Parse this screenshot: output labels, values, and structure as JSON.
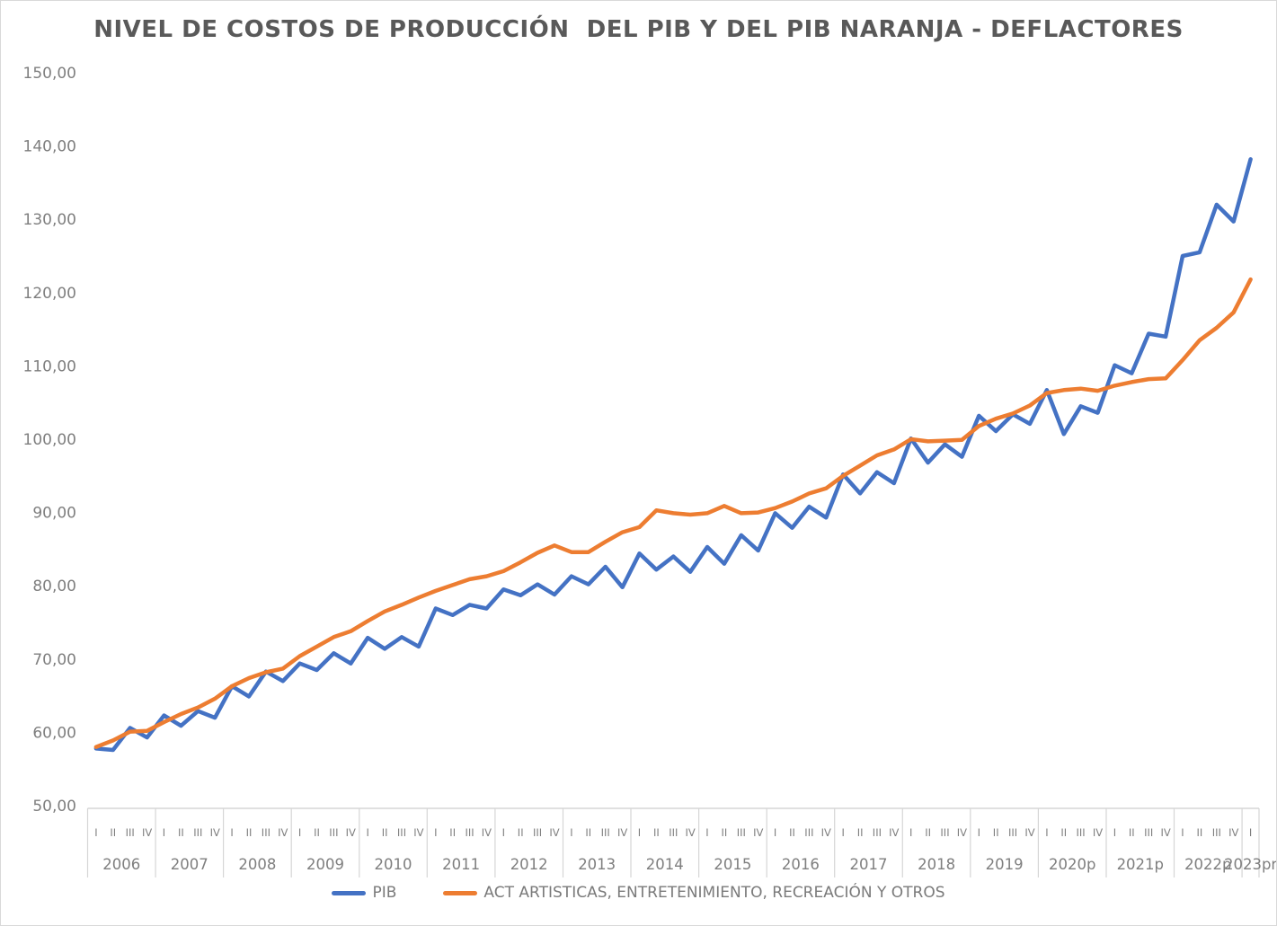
{
  "chart_data": {
    "type": "line",
    "title": "NIVEL DE COSTOS DE PRODUCCIÓN  DEL PIB Y DEL PIB NARANJA - DEFLACTORES",
    "legend_position": "bottom",
    "grid": false,
    "y_axis": {
      "min": 50,
      "max": 150,
      "step": 10,
      "tick_labels": [
        "150,00",
        "140,00",
        "130,00",
        "120,00",
        "110,00",
        "100,00",
        "90,00",
        "80,00",
        "70,00",
        "60,00",
        "50,00"
      ]
    },
    "x_axis": {
      "years": [
        {
          "label": "2006",
          "quarters": [
            "I",
            "II",
            "III",
            "IV"
          ]
        },
        {
          "label": "2007",
          "quarters": [
            "I",
            "II",
            "III",
            "IV"
          ]
        },
        {
          "label": "2008",
          "quarters": [
            "I",
            "II",
            "III",
            "IV"
          ]
        },
        {
          "label": "2009",
          "quarters": [
            "I",
            "II",
            "III",
            "IV"
          ]
        },
        {
          "label": "2010",
          "quarters": [
            "I",
            "II",
            "III",
            "IV"
          ]
        },
        {
          "label": "2011",
          "quarters": [
            "I",
            "II",
            "III",
            "IV"
          ]
        },
        {
          "label": "2012",
          "quarters": [
            "I",
            "II",
            "III",
            "IV"
          ]
        },
        {
          "label": "2013",
          "quarters": [
            "I",
            "II",
            "III",
            "IV"
          ]
        },
        {
          "label": "2014",
          "quarters": [
            "I",
            "II",
            "III",
            "IV"
          ]
        },
        {
          "label": "2015",
          "quarters": [
            "I",
            "II",
            "III",
            "IV"
          ]
        },
        {
          "label": "2016",
          "quarters": [
            "I",
            "II",
            "III",
            "IV"
          ]
        },
        {
          "label": "2017",
          "quarters": [
            "I",
            "II",
            "III",
            "IV"
          ]
        },
        {
          "label": "2018",
          "quarters": [
            "I",
            "II",
            "III",
            "IV"
          ]
        },
        {
          "label": "2019",
          "quarters": [
            "I",
            "II",
            "III",
            "IV"
          ]
        },
        {
          "label": "2020p",
          "quarters": [
            "I",
            "II",
            "III",
            "IV"
          ]
        },
        {
          "label": "2021p",
          "quarters": [
            "I",
            "II",
            "III",
            "IV"
          ]
        },
        {
          "label": "2022p",
          "quarters": [
            "I",
            "II",
            "III",
            "IV"
          ]
        },
        {
          "label": "2023pr",
          "quarters": [
            "I"
          ]
        }
      ]
    },
    "series": [
      {
        "name": "PIB",
        "color": "#4472C4",
        "values": [
          57.8,
          57.6,
          60.6,
          59.3,
          62.3,
          60.9,
          62.9,
          62.0,
          66.3,
          64.9,
          68.3,
          67.0,
          69.4,
          68.5,
          70.8,
          69.4,
          72.9,
          71.4,
          73.0,
          71.7,
          76.9,
          76.0,
          77.4,
          76.9,
          79.5,
          78.7,
          80.2,
          78.8,
          81.3,
          80.2,
          82.6,
          79.8,
          84.4,
          82.2,
          84.0,
          81.9,
          85.3,
          83.0,
          86.9,
          84.8,
          89.9,
          87.9,
          90.8,
          89.3,
          95.2,
          92.6,
          95.5,
          94.0,
          100.1,
          96.8,
          99.3,
          97.6,
          103.2,
          101.1,
          103.4,
          102.1,
          106.7,
          100.7,
          104.5,
          103.6,
          110.1,
          109.0,
          114.4,
          114.0,
          125.0,
          125.5,
          132.0,
          129.7,
          138.2
        ]
      },
      {
        "name": "ACT ARTISTICAS, ENTRETENIMIENTO, RECREACIÓN Y OTROS",
        "color": "#ED7D31",
        "values": [
          58.0,
          58.9,
          60.1,
          60.2,
          61.4,
          62.5,
          63.4,
          64.6,
          66.3,
          67.4,
          68.2,
          68.7,
          70.4,
          71.7,
          73.0,
          73.8,
          75.2,
          76.5,
          77.4,
          78.4,
          79.3,
          80.1,
          80.9,
          81.3,
          82.0,
          83.2,
          84.5,
          85.5,
          84.6,
          84.6,
          86.0,
          87.3,
          88.0,
          90.3,
          89.9,
          89.7,
          89.9,
          90.9,
          89.9,
          90.0,
          90.6,
          91.5,
          92.6,
          93.3,
          95.0,
          96.4,
          97.8,
          98.6,
          100.0,
          99.7,
          99.8,
          99.9,
          101.8,
          102.8,
          103.5,
          104.6,
          106.3,
          106.7,
          106.9,
          106.6,
          107.3,
          107.8,
          108.2,
          108.3,
          110.8,
          113.5,
          115.2,
          117.3,
          121.8
        ]
      }
    ]
  }
}
